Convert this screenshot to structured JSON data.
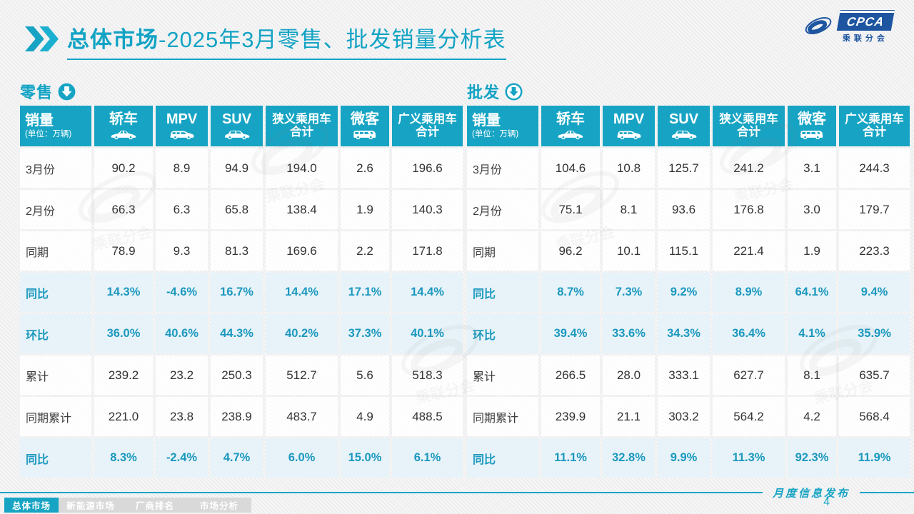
{
  "title": {
    "highlight": "总体市场",
    "rest": "-2025年3月零售、批发销量分析表"
  },
  "logo": {
    "cpca": "CPCA",
    "cn": "乘联分会"
  },
  "colors": {
    "accent": "#17a4c4",
    "percent_text": "#1b98be",
    "percent_row_bg": "#e7f3f9",
    "logo_blue": "#1e55a0",
    "body_text": "#333333",
    "inactive_tab_bg": "#d9d9d9"
  },
  "watermark": "乘联分会",
  "table_columns": [
    {
      "label": "销量",
      "sub": "(单位：万辆)",
      "icon": null
    },
    {
      "label": "轿车",
      "icon": "sedan-car-icon"
    },
    {
      "label": "MPV",
      "icon": "mpv-car-icon"
    },
    {
      "label": "SUV",
      "icon": "suv-car-icon"
    },
    {
      "label": "狭义乘用车",
      "label2": "合计",
      "icon": null
    },
    {
      "label": "微客",
      "icon": "microvan-icon"
    },
    {
      "label": "广义乘用车",
      "label2": "合计",
      "icon": null
    }
  ],
  "tables": [
    {
      "name": "零售",
      "icon": "circle-down-arrow-solid-icon",
      "rows": [
        {
          "label": "3月份",
          "type": "value",
          "values": [
            "90.2",
            "8.9",
            "94.9",
            "194.0",
            "2.6",
            "196.6"
          ]
        },
        {
          "label": "2月份",
          "type": "value",
          "values": [
            "66.3",
            "6.3",
            "65.8",
            "138.4",
            "1.9",
            "140.3"
          ]
        },
        {
          "label": "同期",
          "type": "value",
          "values": [
            "78.9",
            "9.3",
            "81.3",
            "169.6",
            "2.2",
            "171.8"
          ]
        },
        {
          "label": "同比",
          "type": "percent",
          "values": [
            "14.3%",
            "-4.6%",
            "16.7%",
            "14.4%",
            "17.1%",
            "14.4%"
          ]
        },
        {
          "label": "环比",
          "type": "percent",
          "values": [
            "36.0%",
            "40.6%",
            "44.3%",
            "40.2%",
            "37.3%",
            "40.1%"
          ]
        },
        {
          "label": "累计",
          "type": "value",
          "values": [
            "239.2",
            "23.2",
            "250.3",
            "512.7",
            "5.6",
            "518.3"
          ]
        },
        {
          "label": "同期累计",
          "type": "value",
          "values": [
            "221.0",
            "23.8",
            "238.9",
            "483.7",
            "4.9",
            "488.5"
          ]
        },
        {
          "label": "同比",
          "type": "percent",
          "values": [
            "8.3%",
            "-2.4%",
            "4.7%",
            "6.0%",
            "15.0%",
            "6.1%"
          ]
        }
      ]
    },
    {
      "name": "批发",
      "icon": "circle-down-arrow-outline-icon",
      "rows": [
        {
          "label": "3月份",
          "type": "value",
          "values": [
            "104.6",
            "10.8",
            "125.7",
            "241.2",
            "3.1",
            "244.3"
          ]
        },
        {
          "label": "2月份",
          "type": "value",
          "values": [
            "75.1",
            "8.1",
            "93.6",
            "176.8",
            "3.0",
            "179.7"
          ]
        },
        {
          "label": "同期",
          "type": "value",
          "values": [
            "96.2",
            "10.1",
            "115.1",
            "221.4",
            "1.9",
            "223.3"
          ]
        },
        {
          "label": "同比",
          "type": "percent",
          "values": [
            "8.7%",
            "7.3%",
            "9.2%",
            "8.9%",
            "64.1%",
            "9.4%"
          ]
        },
        {
          "label": "环比",
          "type": "percent",
          "values": [
            "39.4%",
            "33.6%",
            "34.3%",
            "36.4%",
            "4.1%",
            "35.9%"
          ]
        },
        {
          "label": "累计",
          "type": "value",
          "values": [
            "266.5",
            "28.0",
            "333.1",
            "627.7",
            "8.1",
            "635.7"
          ]
        },
        {
          "label": "同期累计",
          "type": "value",
          "values": [
            "239.9",
            "21.1",
            "303.2",
            "564.2",
            "4.2",
            "568.4"
          ]
        },
        {
          "label": "同比",
          "type": "percent",
          "values": [
            "11.1%",
            "32.8%",
            "9.9%",
            "11.3%",
            "92.3%",
            "11.9%"
          ]
        }
      ]
    }
  ],
  "footer": {
    "tabs": [
      {
        "label": "总体市场",
        "active": true
      },
      {
        "label": "新能源市场",
        "active": false
      },
      {
        "label": "厂商排名",
        "active": false
      },
      {
        "label": "市场分析",
        "active": false
      }
    ],
    "publication": "月度信息发布",
    "page": "4"
  }
}
